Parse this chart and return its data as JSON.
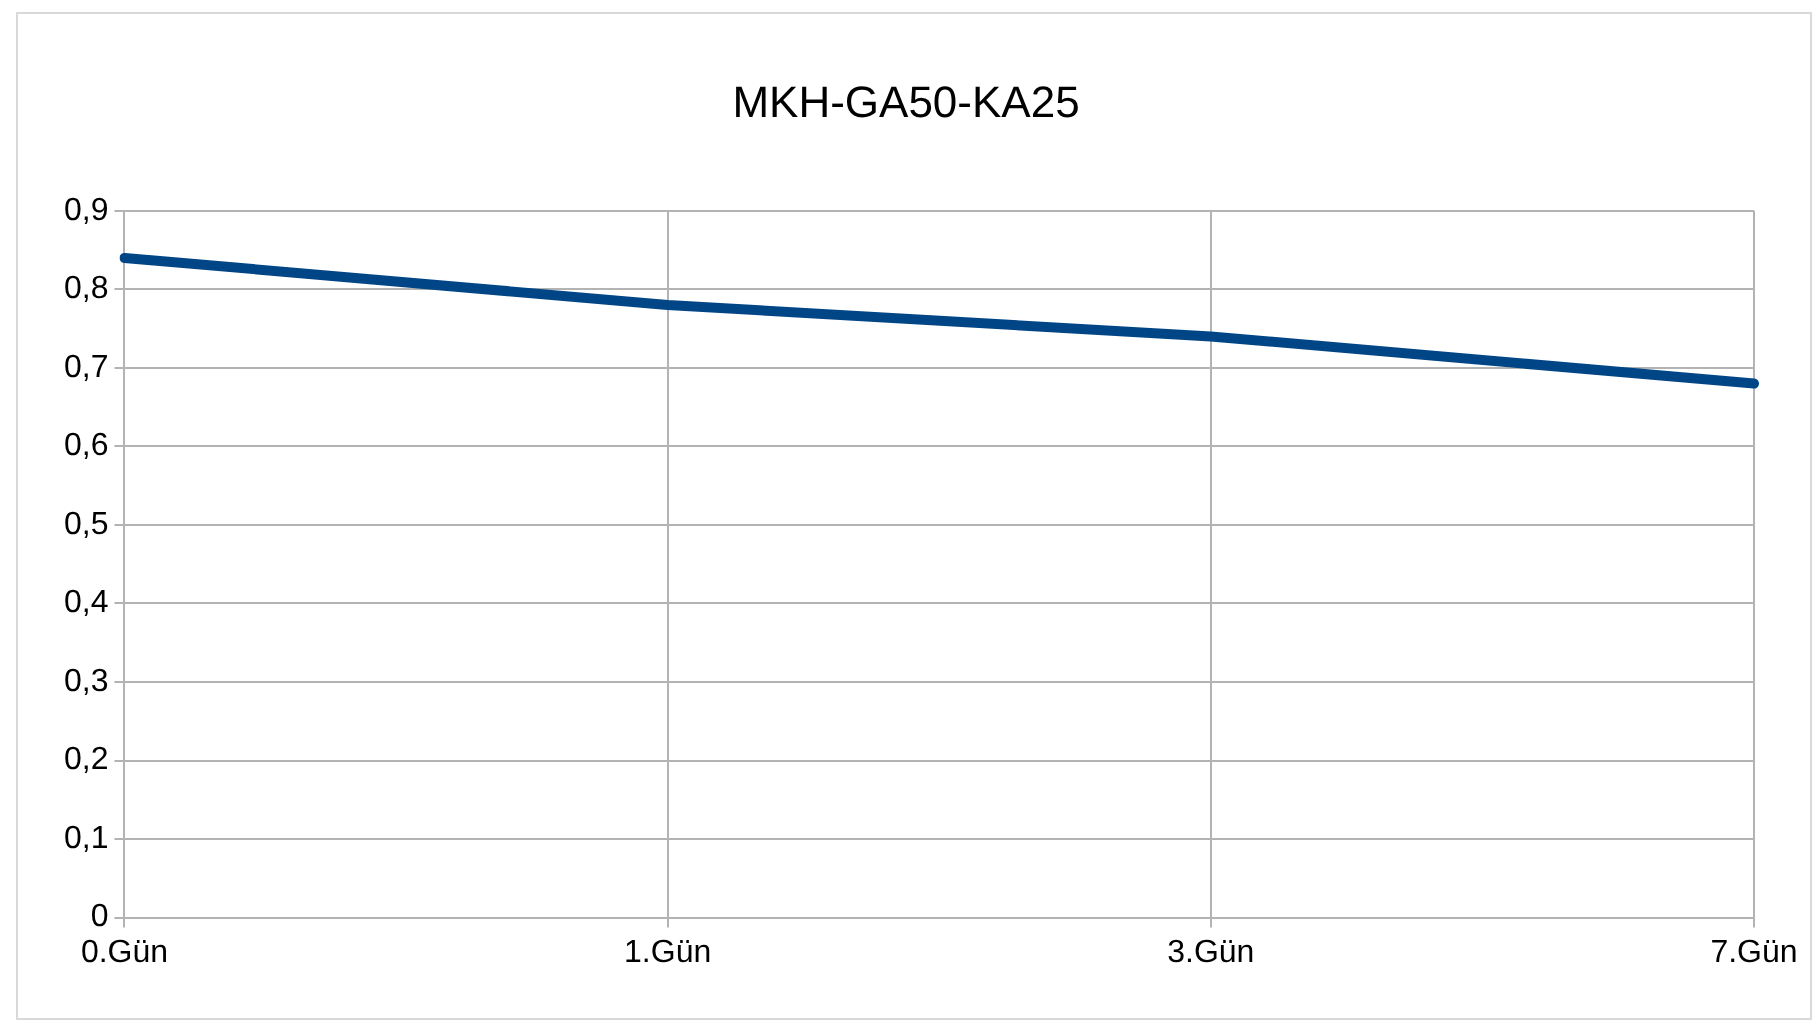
{
  "chart_data": {
    "type": "line",
    "title": "MKH-GA50-KA25",
    "categories": [
      "0.Gün",
      "1.Gün",
      "3.Gün",
      "7.Gün"
    ],
    "series": [
      {
        "color": "#004586",
        "values": [
          0.84,
          0.78,
          0.74,
          0.68
        ]
      }
    ],
    "ylim": [
      0,
      0.9
    ],
    "yticks": [
      0,
      {
        "value": 0.1,
        "label": "0,1"
      },
      {
        "value": 0.2,
        "label": "0,2"
      },
      {
        "value": 0.3,
        "label": "0,3"
      },
      {
        "value": 0.4,
        "label": "0,4"
      },
      {
        "value": 0.5,
        "label": "0,5"
      },
      {
        "value": 0.6,
        "label": "0,6"
      },
      {
        "value": 0.7,
        "label": "0,7"
      },
      {
        "value": 0.8,
        "label": "0,8"
      },
      {
        "value": 0.9,
        "label": "0,9"
      }
    ],
    "grid": true,
    "legend": false,
    "marker": "none",
    "line_style": "solid"
  }
}
